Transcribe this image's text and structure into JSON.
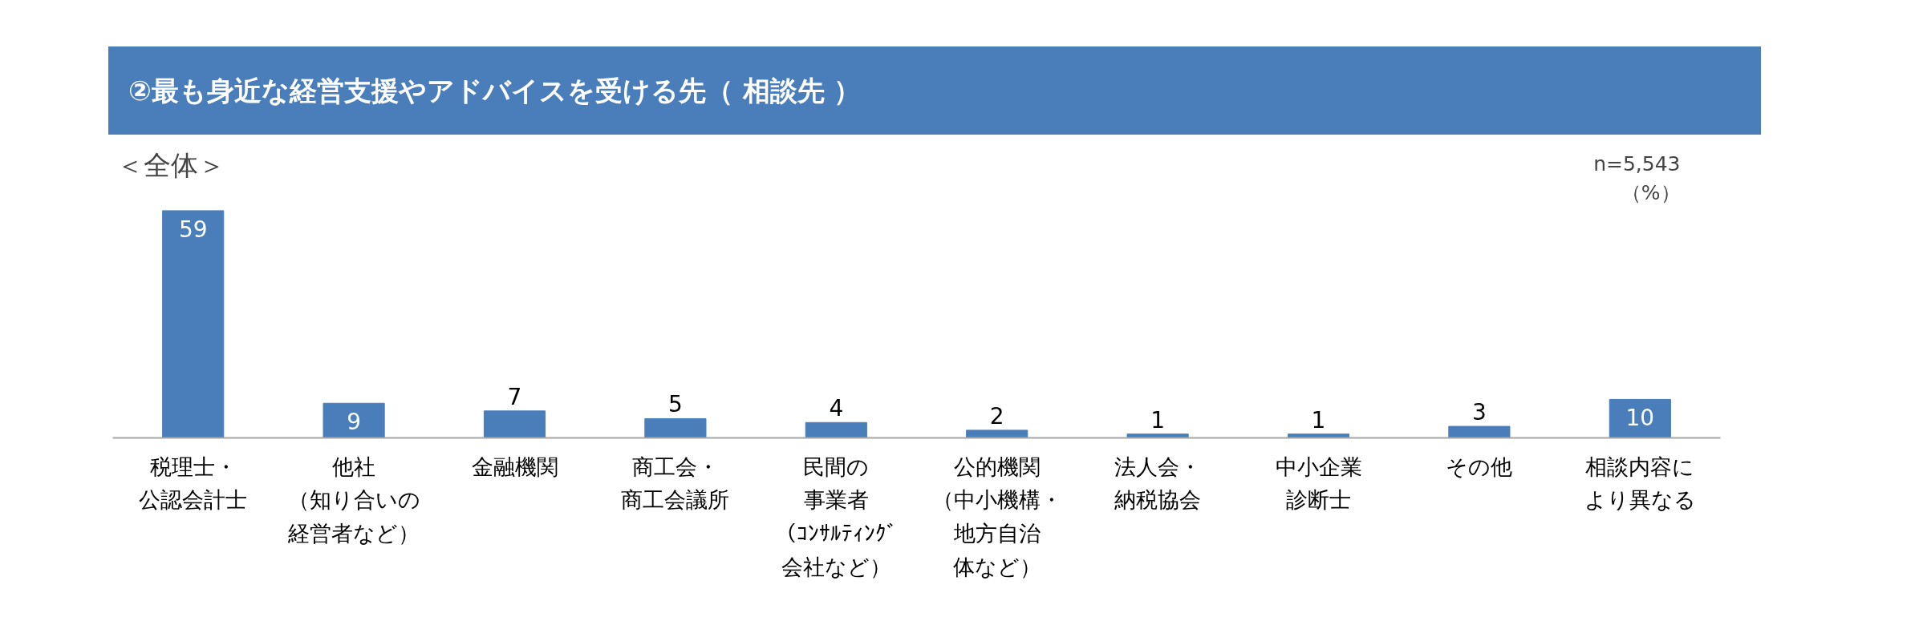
{
  "chart_data": {
    "type": "bar",
    "title": "②最も身近な経営支援やアドバイスを受ける先（ 相談先 ）",
    "subtitle": "＜全体＞",
    "annotations": [
      "n=5,543",
      "（%）"
    ],
    "categories": [
      "税理士・公認会計士",
      "他社（知り合いの経営者など）",
      "金融機関",
      "商工会・商工会議所",
      "民間の事業者（ｺﾝｻﾙﾃｨﾝｸﾞ会社など）",
      "公的機関（中小機構・地方自治体など）",
      "法人会・納税協会",
      "中小企業診断士",
      "その他",
      "相談内容により異なる"
    ],
    "values": [
      59,
      9,
      7,
      5,
      4,
      2,
      1,
      1,
      3,
      10
    ],
    "color": "#4a7ebb",
    "data_labels": true
  }
}
